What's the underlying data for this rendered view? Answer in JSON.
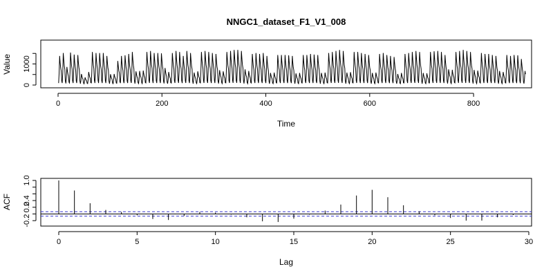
{
  "chart_data": [
    {
      "type": "line",
      "title": "NNGC1_dataset_F1_V1_008",
      "xlabel": "Time",
      "ylabel": "Value",
      "xlim": [
        0,
        905
      ],
      "ylim": [
        0,
        2000
      ],
      "x_ticks": [
        0,
        200,
        400,
        600,
        800
      ],
      "y_ticks": [
        0,
        500,
        1000,
        1500
      ],
      "y_tick_labels": [
        "0",
        "",
        "1000",
        ""
      ],
      "n_points": 900,
      "series": [
        {
          "cycle_length": 7,
          "block_amplitudes": [
            1450,
            1600,
            900,
            1620,
            1520,
            1500,
            550,
            380,
            650,
            1650,
            1600,
            1600,
            1600,
            1450,
            540,
            550,
            1200,
            1450,
            1480,
            1550,
            1650,
            680,
            700,
            720,
            1650,
            1700,
            1600,
            1600,
            1580,
            850,
            650,
            1600,
            1700,
            1650,
            1450,
            1700,
            1600,
            620,
            680,
            1650,
            1700,
            1650,
            1600,
            1550,
            740,
            680,
            1650,
            1700,
            1750,
            1750,
            1700,
            780,
            700,
            1550,
            1600,
            1550,
            1600,
            1450,
            600,
            620,
            1500,
            1500,
            1500,
            1480,
            1450,
            580,
            600,
            1500,
            1500,
            1550,
            1520,
            1500,
            600,
            620,
            1600,
            1650,
            1700,
            1750,
            1700,
            620,
            640,
            1650,
            1650,
            1600,
            1550,
            1500,
            600,
            620,
            1550,
            1600,
            1500,
            1450,
            1400,
            550,
            600,
            1550,
            1600,
            1650,
            1700,
            1650,
            600,
            580,
            1650,
            1680,
            1700,
            1650,
            1500,
            780,
            760,
            1650,
            1700,
            1750,
            1700,
            1650,
            750,
            720,
            1600,
            1550,
            1550,
            1500,
            1450,
            700,
            650,
            1500,
            1450,
            1500,
            1480,
            1300,
            700,
            620
          ],
          "trough_value": 50
        }
      ]
    },
    {
      "type": "bar",
      "xlabel": "Lag",
      "ylabel": "ACF",
      "xlim": [
        0,
        30
      ],
      "ylim": [
        -0.3,
        1.0
      ],
      "x_ticks": [
        0,
        5,
        10,
        15,
        20,
        25,
        30
      ],
      "y_ticks": [
        -0.2,
        0.0,
        0.2,
        0.4,
        0.6,
        0.8,
        1.0
      ],
      "y_tick_labels": [
        "-0.2",
        "",
        "0.2",
        "0.4",
        "",
        "",
        "1.0"
      ],
      "lags": [
        0,
        1,
        2,
        3,
        4,
        5,
        6,
        7,
        8,
        9,
        10,
        11,
        12,
        13,
        14,
        15,
        16,
        17,
        18,
        19,
        20,
        21,
        22,
        23,
        24,
        25,
        26,
        27,
        28,
        29
      ],
      "values": [
        1.0,
        0.7,
        0.32,
        0.12,
        0.06,
        -0.04,
        -0.15,
        -0.18,
        -0.06,
        0.06,
        0.04,
        -0.02,
        -0.1,
        -0.22,
        -0.24,
        -0.14,
        -0.02,
        0.1,
        0.28,
        0.55,
        0.72,
        0.5,
        0.26,
        0.08,
        -0.04,
        -0.12,
        -0.2,
        -0.2,
        -0.1,
        -0.03
      ],
      "confidence_band": [
        -0.065,
        0.065
      ]
    }
  ]
}
